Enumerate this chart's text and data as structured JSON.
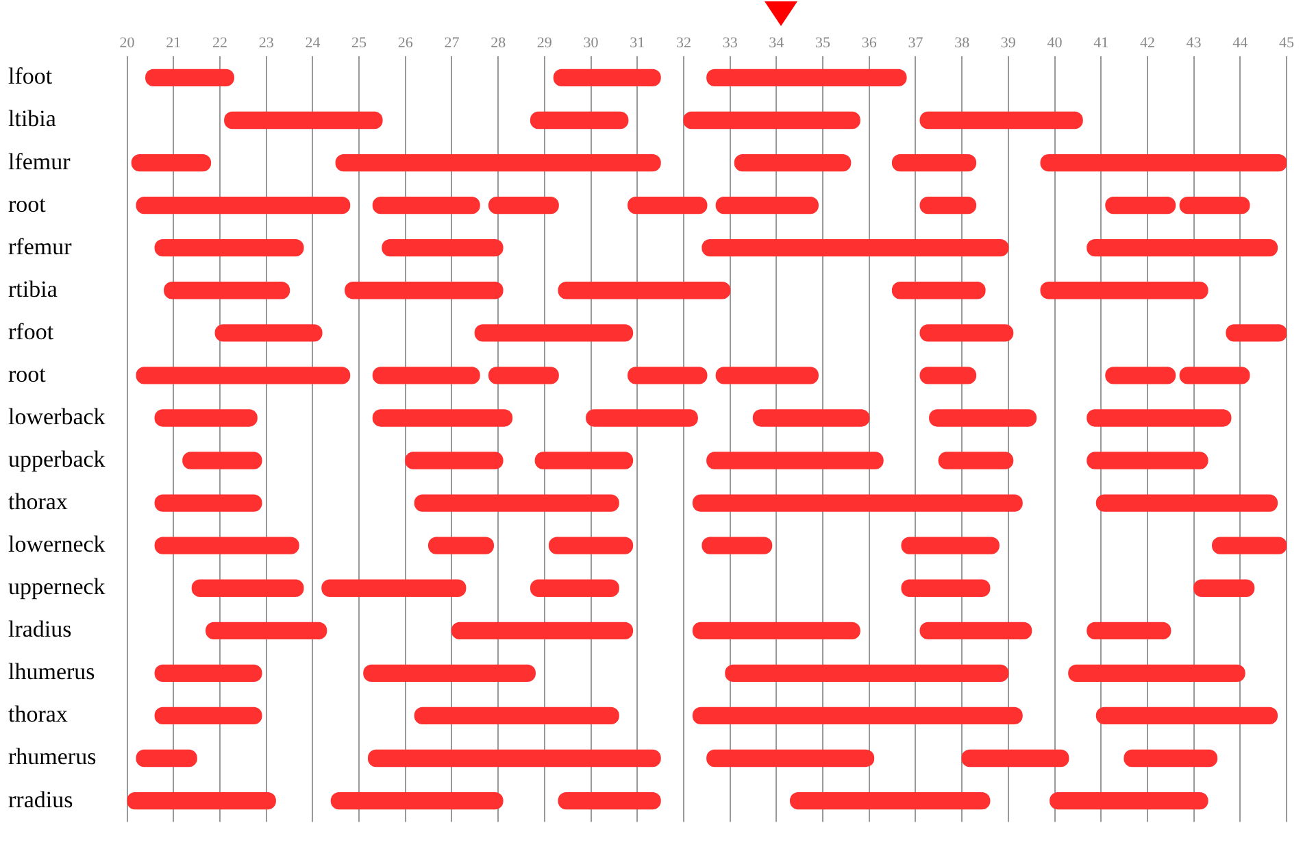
{
  "chart_data": {
    "type": "bar",
    "orientation": "horizontal",
    "categories": [
      "lfoot",
      "ltibia",
      "lfemur",
      "root",
      "rfemur",
      "rtibia",
      "rfoot",
      "root",
      "lowerback",
      "upperback",
      "thorax",
      "lowerneck",
      "upperneck",
      "lradius",
      "lhumerus",
      "thorax",
      "rhumerus",
      "rradius"
    ],
    "series": [
      {
        "color": "#ff3030",
        "base": [
          20.4,
          22.1,
          20.1,
          20.2,
          20.6,
          20.8,
          21.9,
          20.2,
          20.6,
          21.2,
          20.6,
          20.6,
          21.4,
          21.7,
          20.6,
          20.6,
          20.2,
          20.0
        ],
        "values": [
          1.9,
          3.4,
          1.7,
          4.6,
          3.2,
          2.7,
          2.3,
          4.6,
          2.2,
          1.7,
          2.3,
          3.1,
          2.4,
          2.6,
          2.3,
          2.3,
          1.3,
          3.2
        ]
      },
      {
        "color": "#ff3030",
        "base": [
          29.2,
          28.7,
          24.5,
          25.3,
          25.5,
          24.7,
          27.5,
          25.3,
          25.3,
          26.0,
          26.2,
          26.5,
          24.2,
          27.0,
          25.1,
          26.2,
          25.2,
          24.4
        ],
        "values": [
          2.3,
          2.1,
          7.0,
          2.3,
          2.6,
          3.4,
          3.4,
          2.3,
          3.0,
          2.1,
          4.4,
          1.4,
          3.1,
          3.9,
          3.7,
          4.4,
          6.3,
          3.7
        ]
      },
      {
        "color": "#ff3030",
        "base": [
          32.5,
          32.0,
          33.1,
          27.8,
          32.4,
          29.3,
          37.1,
          27.8,
          29.9,
          28.8,
          32.2,
          29.1,
          28.7,
          32.2,
          32.9,
          32.2,
          32.5,
          29.3
        ],
        "values": [
          4.3,
          3.8,
          2.5,
          1.5,
          6.6,
          3.7,
          2.0,
          1.5,
          2.4,
          2.1,
          7.1,
          1.8,
          1.9,
          3.6,
          6.1,
          7.1,
          3.6,
          2.2
        ]
      },
      {
        "color": "#ff3030",
        "base": [
          null,
          37.1,
          36.5,
          30.8,
          40.7,
          36.5,
          43.7,
          30.8,
          33.5,
          32.5,
          40.9,
          32.4,
          36.7,
          37.1,
          40.3,
          40.9,
          38.0,
          34.3
        ],
        "values": [
          null,
          3.5,
          1.8,
          1.7,
          4.1,
          2.0,
          1.3,
          1.7,
          2.5,
          3.8,
          3.9,
          1.5,
          1.9,
          2.4,
          3.8,
          3.9,
          2.3,
          4.3
        ]
      },
      {
        "color": "#ff3030",
        "base": [
          null,
          null,
          39.7,
          32.7,
          null,
          39.7,
          null,
          32.7,
          37.3,
          37.5,
          null,
          36.7,
          43.0,
          40.7,
          null,
          null,
          41.5,
          39.9
        ],
        "values": [
          null,
          null,
          5.3,
          2.2,
          null,
          3.6,
          null,
          2.2,
          2.3,
          1.6,
          null,
          2.1,
          1.3,
          1.8,
          null,
          null,
          2.0,
          3.4
        ]
      },
      {
        "color": "#ff3030",
        "base": [
          null,
          null,
          null,
          37.1,
          null,
          null,
          null,
          37.1,
          40.7,
          40.7,
          null,
          43.4,
          null,
          null,
          null,
          null,
          null,
          null
        ],
        "values": [
          null,
          null,
          null,
          1.2,
          null,
          null,
          null,
          1.2,
          3.1,
          2.6,
          null,
          1.6,
          null,
          null,
          null,
          null,
          null,
          null
        ]
      },
      {
        "color": "#ff3030",
        "base": [
          null,
          null,
          null,
          41.1,
          null,
          null,
          null,
          41.1,
          null,
          null,
          null,
          null,
          null,
          null,
          null,
          null,
          null,
          null
        ],
        "values": [
          null,
          null,
          null,
          1.5,
          null,
          null,
          null,
          1.5,
          null,
          null,
          null,
          null,
          null,
          null,
          null,
          null,
          null,
          null
        ]
      },
      {
        "color": "#ff3030",
        "base": [
          null,
          null,
          null,
          42.7,
          null,
          null,
          null,
          42.7,
          null,
          null,
          null,
          null,
          null,
          null,
          null,
          null,
          null,
          null
        ],
        "values": [
          null,
          null,
          null,
          1.5,
          null,
          null,
          null,
          1.5,
          null,
          null,
          null,
          null,
          null,
          null,
          null,
          null,
          null,
          null
        ]
      }
    ],
    "xlim": [
      20,
      45
    ],
    "xticks": [
      20,
      21,
      22,
      23,
      24,
      25,
      26,
      27,
      28,
      29,
      30,
      31,
      32,
      33,
      34,
      35,
      36,
      37,
      38,
      39,
      40,
      41,
      42,
      43,
      44,
      45
    ],
    "grid": "x",
    "legend": false
  }
}
